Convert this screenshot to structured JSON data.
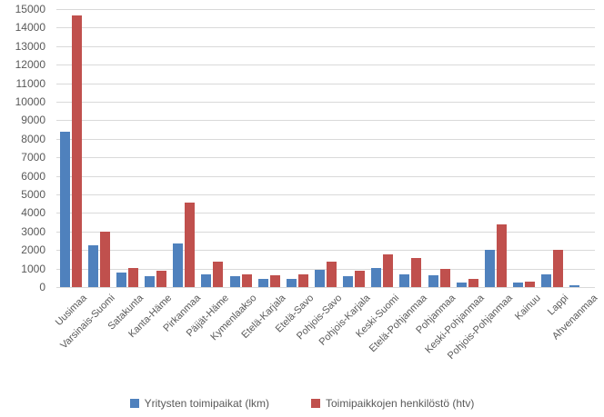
{
  "chart_data": {
    "type": "bar",
    "title": "",
    "xlabel": "",
    "ylabel": "",
    "ylim": [
      0,
      15000
    ],
    "ytick_step": 1000,
    "grid": true,
    "legend_position": "bottom",
    "categories": [
      "Uusimaa",
      "Varsinais-Suomi",
      "Satakunta",
      "Kanta-Häme",
      "Pirkanmaa",
      "Päijät-Häme",
      "Kymenlaakso",
      "Etelä-Karjala",
      "Etelä-Savo",
      "Pohjois-Savo",
      "Pohjois-Karjala",
      "Keski-Suomi",
      "Etelä-Pohjanmaa",
      "Pohjanmaa",
      "Keski-Pohjanmaa",
      "Pohjois-Pohjanmaa",
      "Kainuu",
      "Lappi",
      "Ahvenanmaa"
    ],
    "series": [
      {
        "name": "Yritysten toimipaikat (lkm)",
        "color": "#4F81BD",
        "values": [
          8400,
          2250,
          800,
          570,
          2350,
          670,
          570,
          430,
          440,
          950,
          590,
          1050,
          690,
          620,
          250,
          2000,
          260,
          670,
          110
        ]
      },
      {
        "name": "Toimipaikkojen henkilöstö (htv)",
        "color": "#C0504D",
        "values": [
          14650,
          3000,
          1050,
          870,
          4560,
          1350,
          690,
          640,
          670,
          1350,
          870,
          1750,
          1550,
          970,
          460,
          3380,
          300,
          2020,
          0
        ]
      }
    ]
  },
  "colors": {
    "gridline": "#D9D9D9",
    "axis_text": "#595959",
    "background": "#FFFFFF"
  }
}
